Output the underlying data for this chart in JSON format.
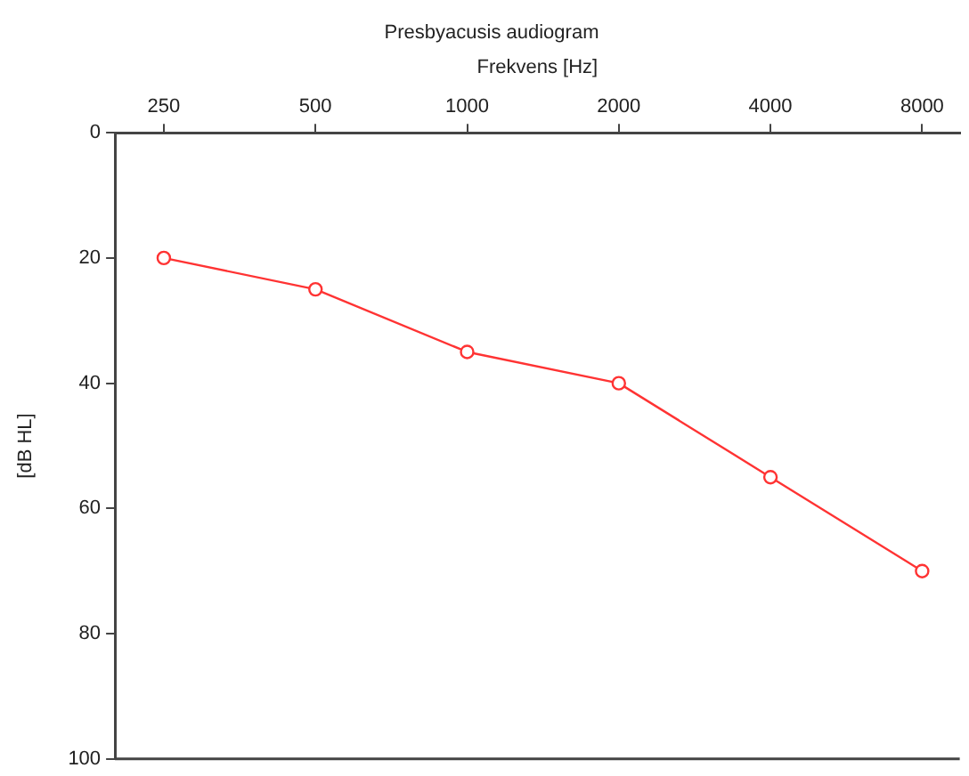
{
  "chart_data": {
    "type": "line",
    "title": "Presbyacusis audiogram",
    "xlabel": "Frekvens [Hz]",
    "ylabel": "[dB HL]",
    "x": [
      250,
      500,
      1000,
      2000,
      4000,
      8000
    ],
    "series": [
      {
        "color": "#ff3333",
        "values": [
          20,
          25,
          35,
          40,
          55,
          70
        ]
      }
    ],
    "log": "x",
    "xlim": [
      200,
      9500
    ],
    "xticks": [
      250,
      500,
      1000,
      2000,
      4000,
      8000
    ],
    "ylim": [
      100,
      0
    ],
    "yticks": [
      0,
      20,
      40,
      60,
      80,
      100
    ],
    "grid": false,
    "legend": false,
    "marker": "circle",
    "line_style": "solid"
  }
}
